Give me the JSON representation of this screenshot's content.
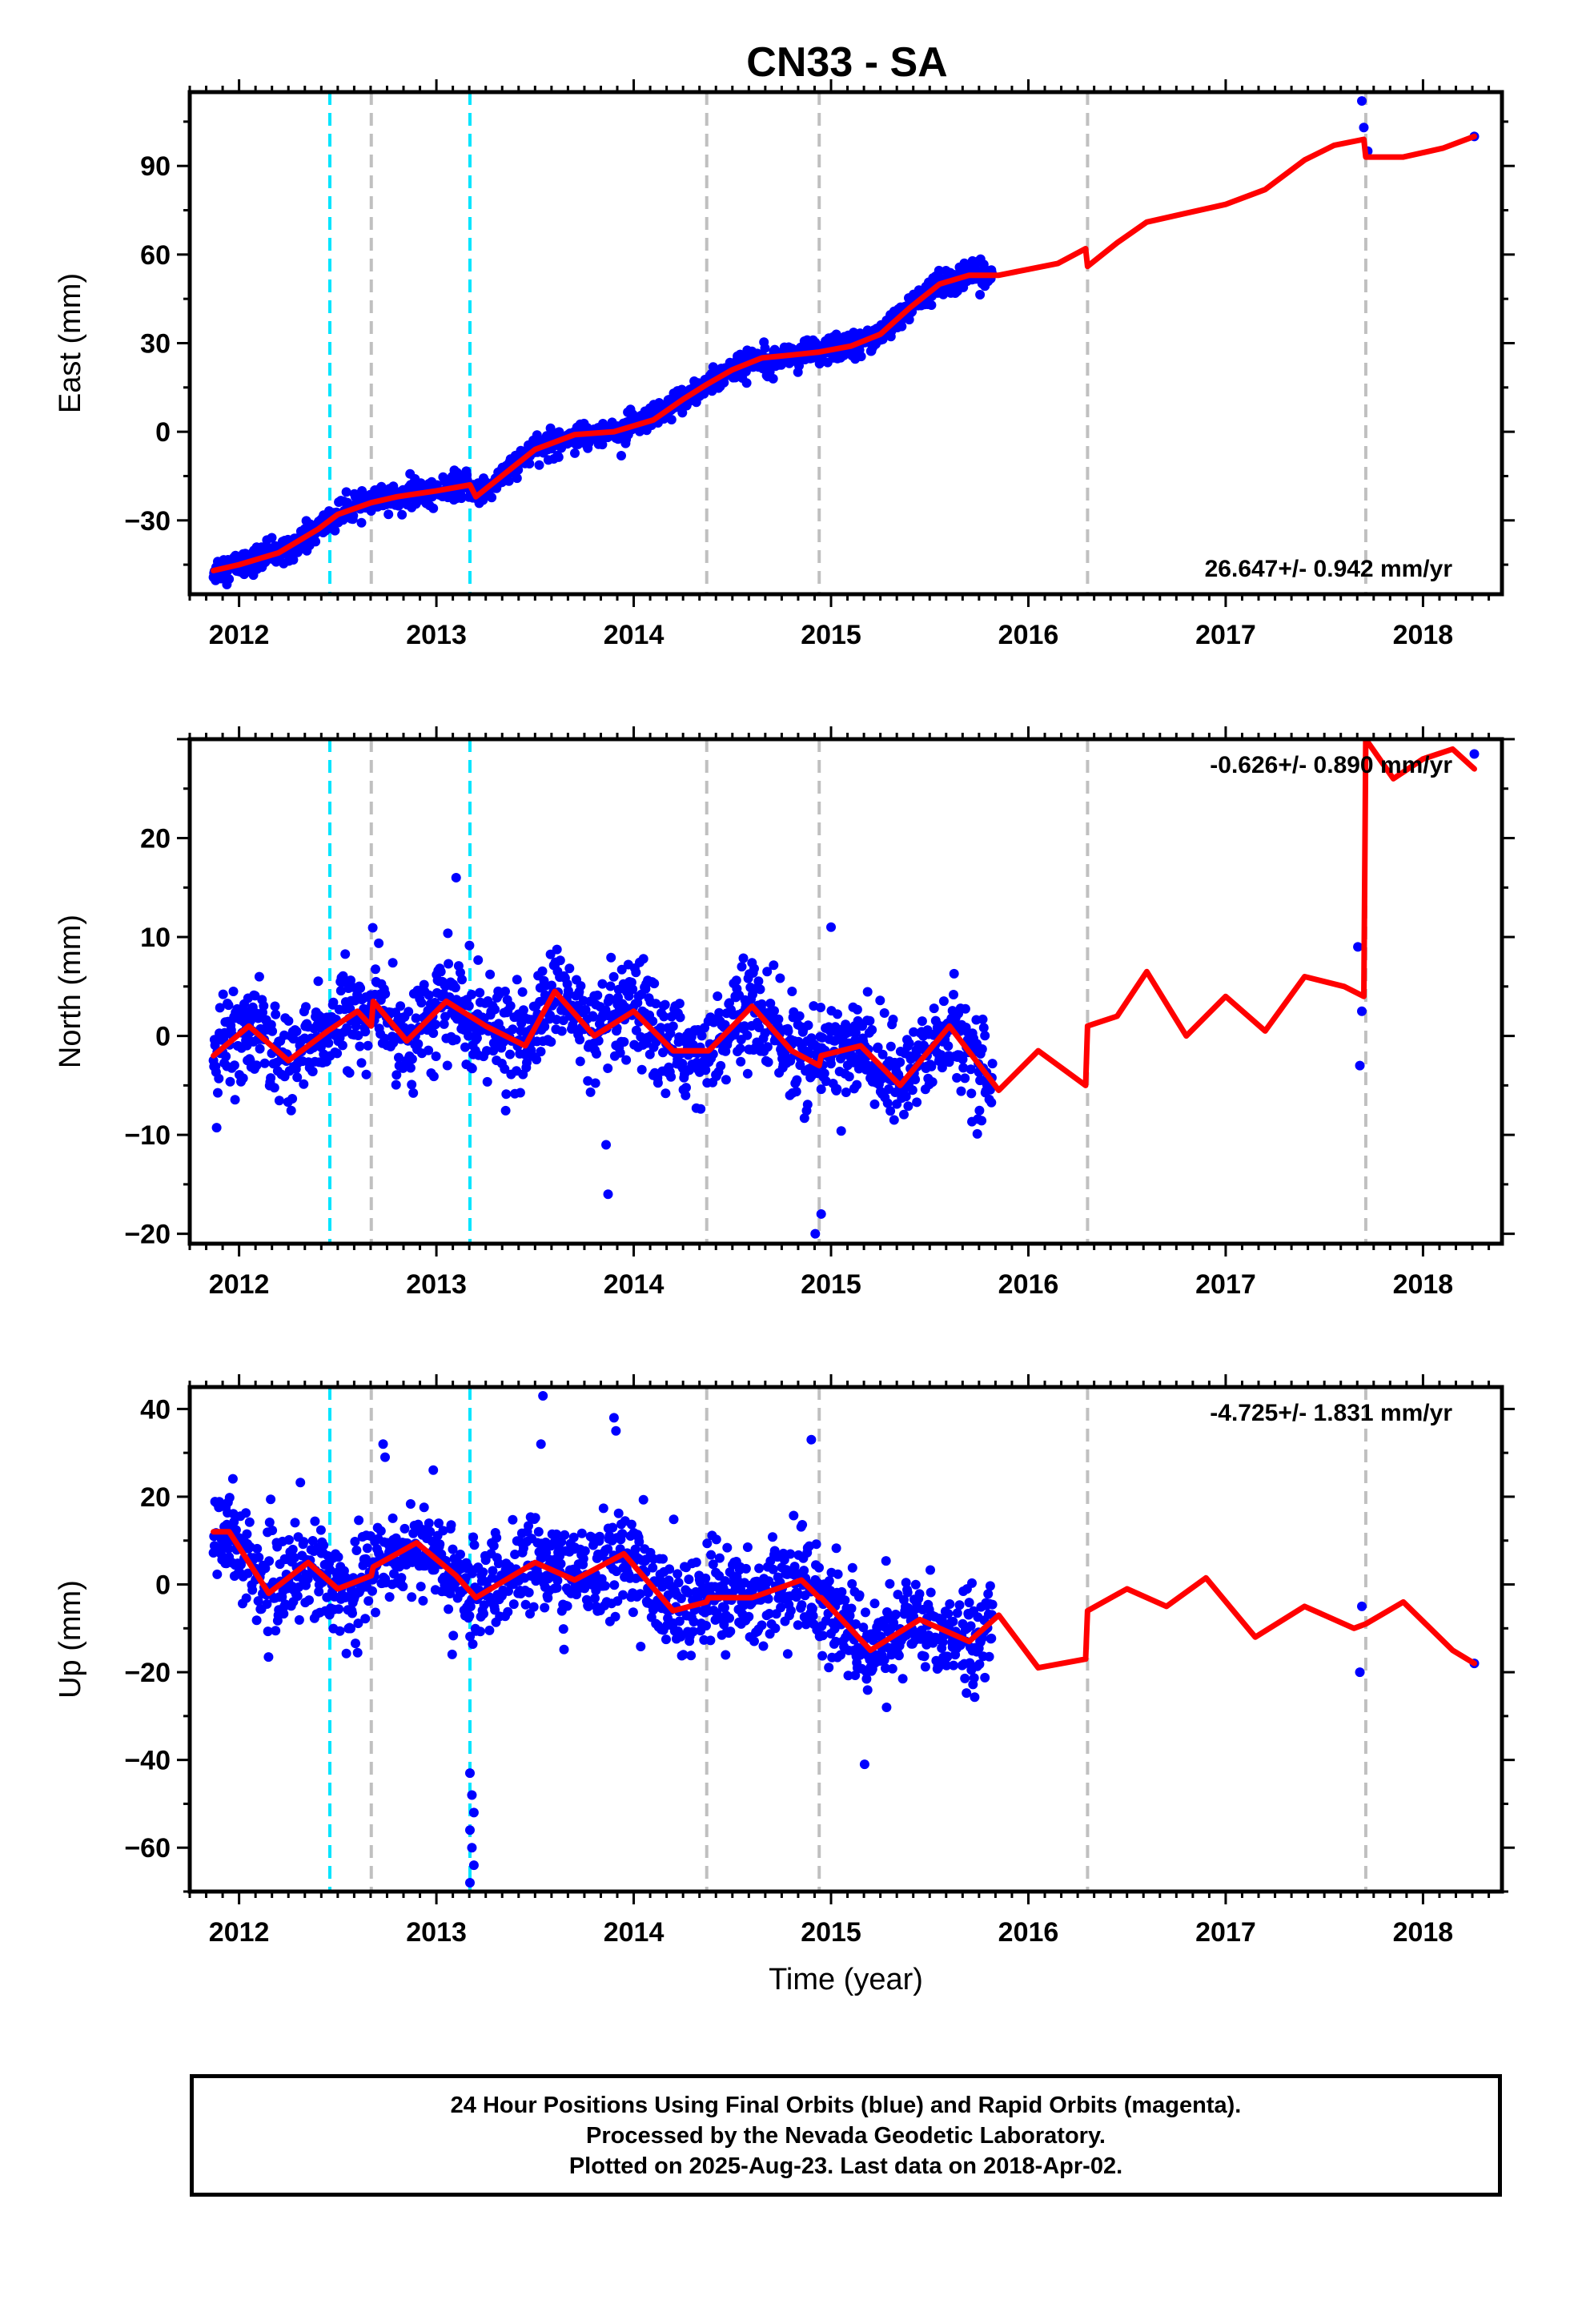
{
  "title": "CN33 - SA",
  "footer": {
    "line1": "24 Hour Positions Using Final Orbits (blue) and Rapid Orbits (magenta).",
    "line2": "Processed by the Nevada Geodetic Laboratory.",
    "line3": "Plotted on 2025-Aug-23. Last data on 2018-Apr-02."
  },
  "colors": {
    "data_points": "#0000ff",
    "model_fit": "#ff0000",
    "equipment_change": "#c0c0c0",
    "earthquake": "#00e5ff",
    "frame": "#000000"
  },
  "chart_data": [
    {
      "type": "scatter",
      "ylabel": "East (mm)",
      "xlabel": "",
      "xlim": [
        2011.75,
        2018.4
      ],
      "ylim": [
        -55,
        115
      ],
      "x_ticks": [
        "2012",
        "2013",
        "2014",
        "2015",
        "2016",
        "2017",
        "2018"
      ],
      "y_ticks": [
        "90",
        "60",
        "30",
        "0",
        "−30"
      ],
      "y_tick_values": [
        90,
        60,
        30,
        0,
        -30
      ],
      "rate_label": "26.647+/- 0.942 mm/yr",
      "rate_position": "bottom-right",
      "gray_lines": [
        2012.67,
        2014.37,
        2014.94,
        2016.3,
        2017.71
      ],
      "cyan_lines": [
        2012.46,
        2013.17
      ],
      "series": [
        {
          "kind": "daily",
          "data_start": 2011.87,
          "data_end": 2015.82,
          "scatter_sd": 2.2,
          "outliers": [
            [
              2017.69,
              112
            ],
            [
              2017.7,
              103
            ],
            [
              2017.72,
              95
            ],
            [
              2018.26,
              100
            ]
          ]
        },
        {
          "kind": "model",
          "x": [
            2011.87,
            2012.0,
            2012.2,
            2012.4,
            2012.5,
            2012.67,
            2012.8,
            2013.0,
            2013.17,
            2013.2,
            2013.35,
            2013.5,
            2013.7,
            2013.9,
            2014.1,
            2014.25,
            2014.37,
            2014.5,
            2014.65,
            2014.8,
            2014.94,
            2015.1,
            2015.25,
            2015.4,
            2015.55,
            2015.7,
            2015.85,
            2016.0,
            2016.15,
            2016.29,
            2016.3,
            2016.45,
            2016.6,
            2016.8,
            2017.0,
            2017.2,
            2017.4,
            2017.55,
            2017.7,
            2017.71,
            2017.9,
            2018.1,
            2018.26
          ],
          "y": [
            -47,
            -45,
            -41,
            -33,
            -28,
            -24,
            -22,
            -20,
            -18,
            -22,
            -14,
            -6,
            -1,
            0,
            4,
            11,
            16,
            21,
            25,
            26,
            27,
            29,
            33,
            42,
            50,
            53,
            53,
            55,
            57,
            62,
            56,
            64,
            71,
            74,
            77,
            82,
            92,
            97,
            99,
            93,
            93,
            96,
            100
          ]
        }
      ]
    },
    {
      "type": "scatter",
      "ylabel": "North (mm)",
      "xlabel": "",
      "xlim": [
        2011.75,
        2018.4
      ],
      "ylim": [
        -21,
        30
      ],
      "x_ticks": [
        "2012",
        "2013",
        "2014",
        "2015",
        "2016",
        "2017",
        "2018"
      ],
      "y_ticks": [
        "20",
        "10",
        "0",
        "−10",
        "−20"
      ],
      "y_tick_values": [
        20,
        10,
        0,
        -10,
        -20
      ],
      "rate_label": "-0.626+/- 0.890 mm/yr",
      "rate_position": "top-right",
      "gray_lines": [
        2012.67,
        2014.37,
        2014.94,
        2016.3,
        2017.71
      ],
      "cyan_lines": [
        2012.46,
        2013.17
      ],
      "series": [
        {
          "kind": "daily",
          "data_start": 2011.87,
          "data_end": 2015.82,
          "scatter_sd": 2.4,
          "outliers": [
            [
              2013.1,
              16
            ],
            [
              2013.86,
              -11
            ],
            [
              2013.87,
              -16
            ],
            [
              2014.92,
              -20
            ],
            [
              2014.95,
              -18
            ],
            [
              2015.0,
              11
            ],
            [
              2017.67,
              9
            ],
            [
              2017.68,
              -3
            ],
            [
              2017.69,
              2.5
            ],
            [
              2018.26,
              28.5
            ]
          ]
        },
        {
          "kind": "model",
          "x": [
            2011.87,
            2012.05,
            2012.25,
            2012.45,
            2012.6,
            2012.67,
            2012.68,
            2012.85,
            2013.05,
            2013.25,
            2013.45,
            2013.6,
            2013.8,
            2014.0,
            2014.2,
            2014.37,
            2014.38,
            2014.6,
            2014.8,
            2014.94,
            2014.95,
            2015.15,
            2015.35,
            2015.6,
            2015.85,
            2016.05,
            2016.29,
            2016.3,
            2016.45,
            2016.6,
            2016.8,
            2017.0,
            2017.2,
            2017.4,
            2017.6,
            2017.7,
            2017.71,
            2017.85,
            2018.0,
            2018.15,
            2018.26
          ],
          "y": [
            -2,
            1,
            -2.5,
            0.5,
            2.5,
            1,
            3.5,
            -0.5,
            3.5,
            1,
            -1,
            4.5,
            0,
            2.5,
            -1.5,
            -1.5,
            -1.5,
            3,
            -1.5,
            -3,
            -2,
            -1,
            -5,
            1,
            -5.5,
            -1.5,
            -5,
            1,
            2,
            6.5,
            0,
            4,
            0.5,
            6,
            5,
            4,
            30,
            26,
            28,
            29,
            27
          ]
        }
      ]
    },
    {
      "type": "scatter",
      "ylabel": "Up (mm)",
      "xlabel": "Time (year)",
      "xlim": [
        2011.75,
        2018.4
      ],
      "ylim": [
        -70,
        45
      ],
      "x_ticks": [
        "2012",
        "2013",
        "2014",
        "2015",
        "2016",
        "2017",
        "2018"
      ],
      "y_ticks": [
        "40",
        "20",
        "0",
        "−20",
        "−40",
        "−60"
      ],
      "y_tick_values": [
        40,
        20,
        0,
        -20,
        -40,
        -60
      ],
      "rate_label": "-4.725+/- 1.831 mm/yr",
      "rate_position": "top-right",
      "gray_lines": [
        2012.67,
        2014.37,
        2014.94,
        2016.3,
        2017.71
      ],
      "cyan_lines": [
        2012.46,
        2013.17
      ],
      "series": [
        {
          "kind": "daily",
          "data_start": 2011.87,
          "data_end": 2015.82,
          "scatter_sd": 5.5,
          "outliers": [
            [
              2013.17,
              -43
            ],
            [
              2013.18,
              -48
            ],
            [
              2013.19,
              -52
            ],
            [
              2013.17,
              -56
            ],
            [
              2013.18,
              -60
            ],
            [
              2013.19,
              -64
            ],
            [
              2013.17,
              -68
            ],
            [
              2013.54,
              43
            ],
            [
              2013.53,
              32
            ],
            [
              2013.9,
              38
            ],
            [
              2013.91,
              35
            ],
            [
              2012.73,
              32
            ],
            [
              2012.74,
              29
            ],
            [
              2014.9,
              33
            ],
            [
              2015.17,
              -41
            ],
            [
              2017.68,
              -20
            ],
            [
              2017.69,
              -5
            ],
            [
              2018.26,
              -18
            ]
          ]
        },
        {
          "kind": "model",
          "x": [
            2011.87,
            2011.95,
            2012.15,
            2012.35,
            2012.5,
            2012.67,
            2012.68,
            2012.9,
            2013.1,
            2013.2,
            2013.5,
            2013.7,
            2013.95,
            2014.2,
            2014.37,
            2014.38,
            2014.6,
            2014.85,
            2014.94,
            2014.95,
            2015.2,
            2015.45,
            2015.7,
            2015.85,
            2016.05,
            2016.29,
            2016.3,
            2016.5,
            2016.7,
            2016.9,
            2017.15,
            2017.4,
            2017.65,
            2017.71,
            2017.9,
            2018.15,
            2018.26
          ],
          "y": [
            12,
            12,
            -2,
            5,
            -1,
            2,
            4,
            9.5,
            2,
            -3,
            5,
            1,
            7,
            -6,
            -4,
            -3,
            -3,
            1,
            -3,
            -3,
            -15,
            -8,
            -13,
            -7,
            -19,
            -17,
            -6,
            -1,
            -5,
            1.5,
            -12,
            -5,
            -10,
            -9,
            -4,
            -15,
            -18
          ]
        }
      ]
    }
  ]
}
